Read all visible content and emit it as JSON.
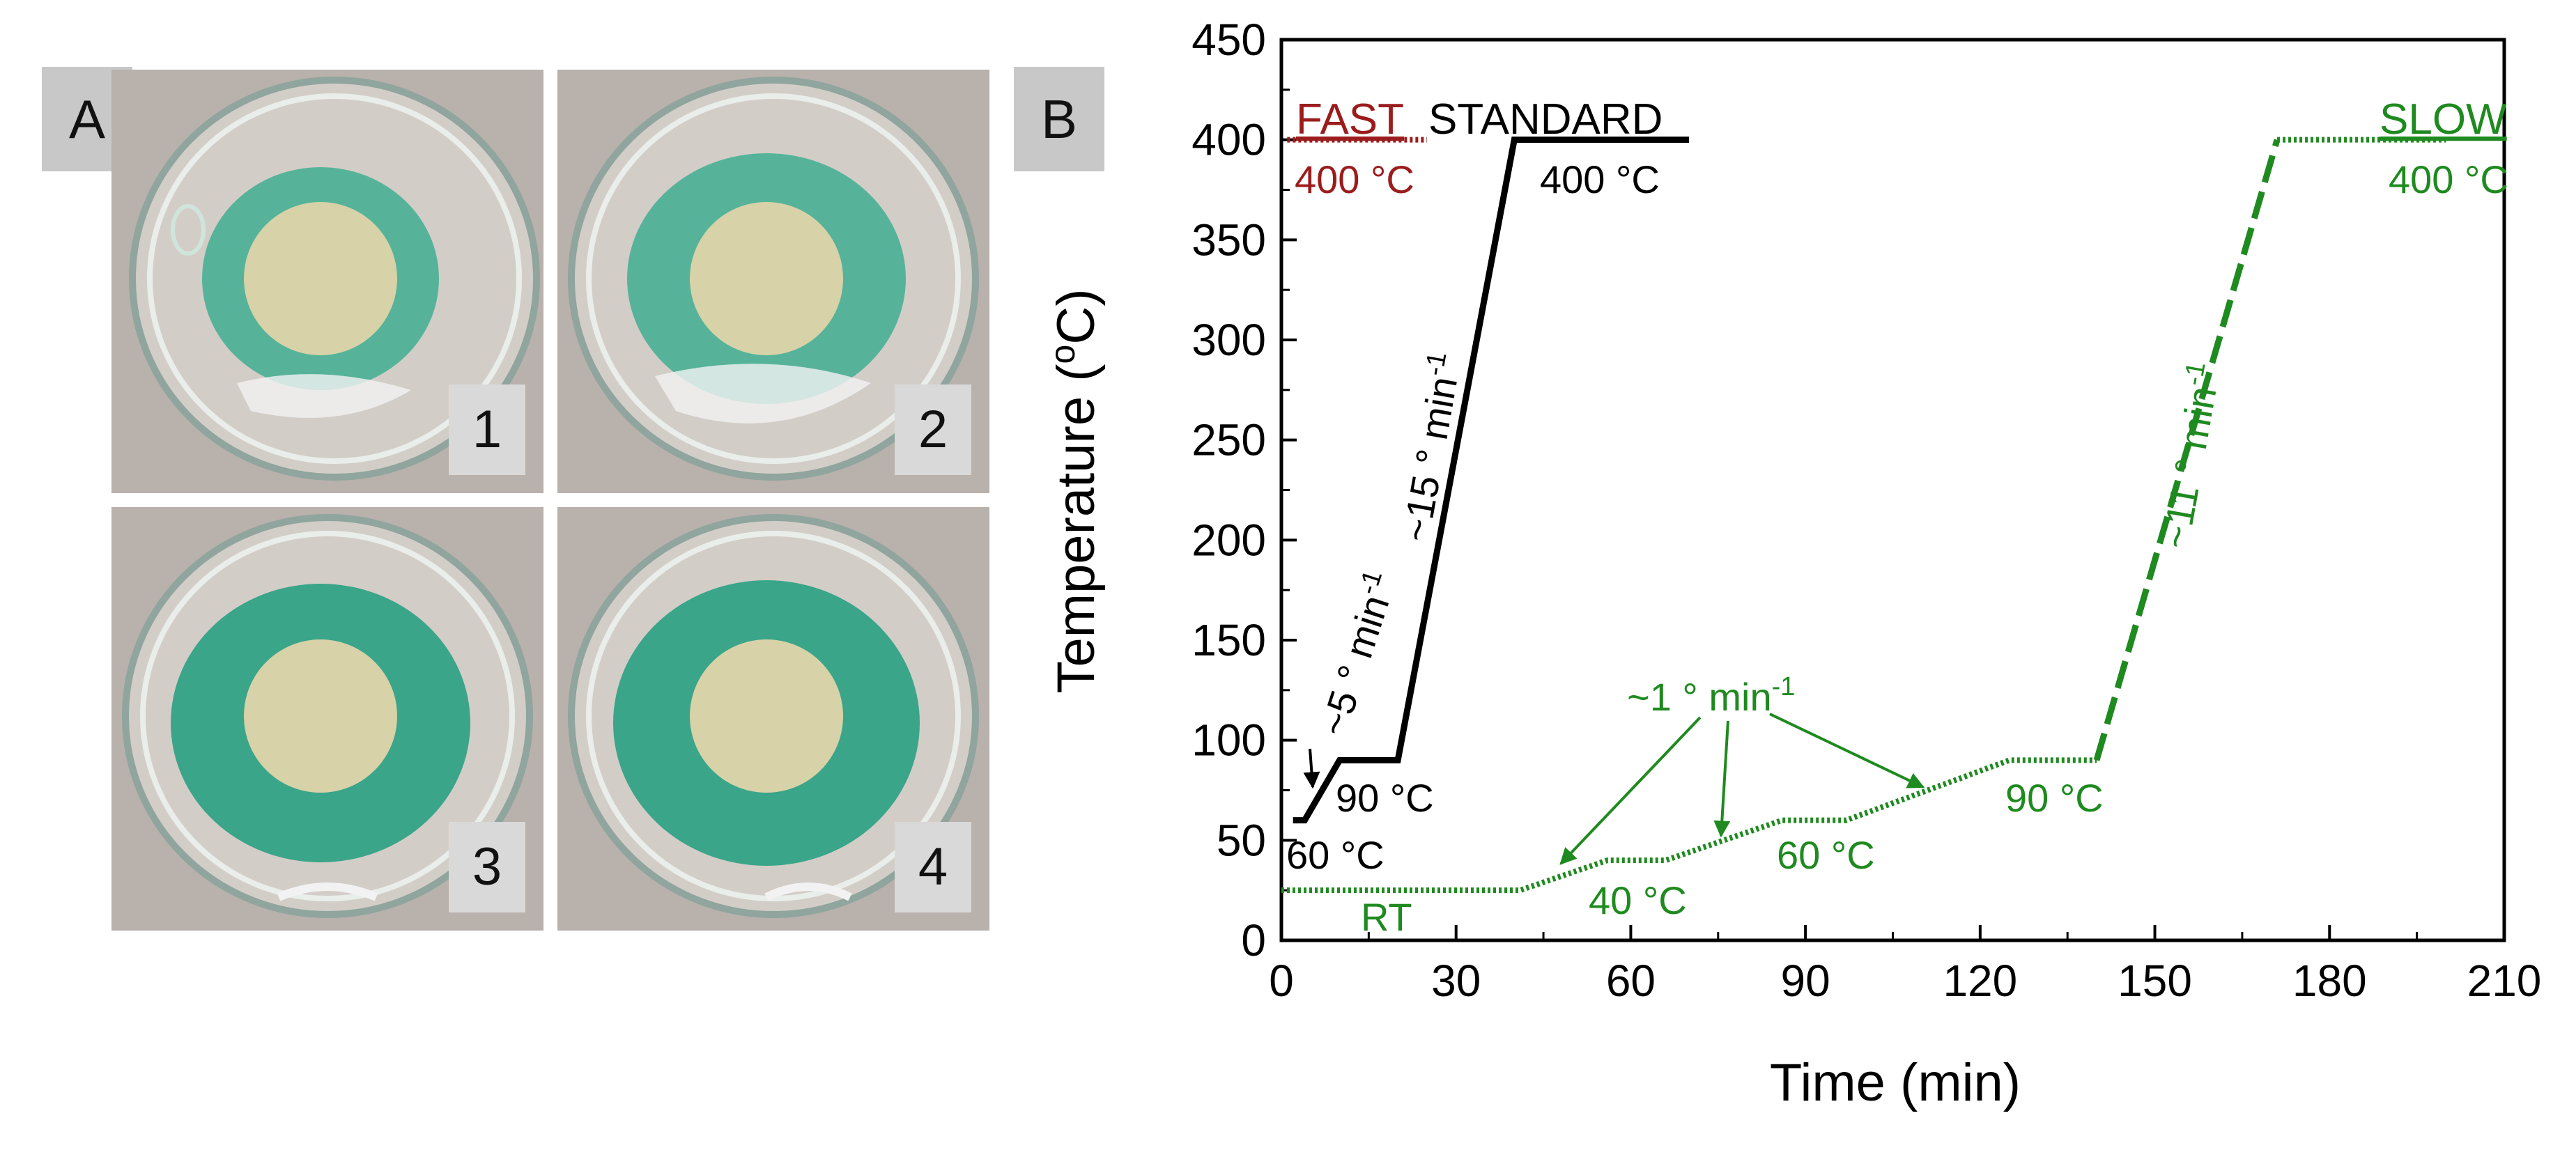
{
  "panels": {
    "a_label": "A",
    "b_label": "B",
    "dish_numbers": [
      "1",
      "2",
      "3",
      "4"
    ]
  },
  "colors": {
    "standard": "#000000",
    "fast": "#9b1c1c",
    "slow": "#1f8a1f",
    "dye": "#1aa07a"
  },
  "chart_data": {
    "type": "line",
    "xlabel": "Time (min)",
    "ylabel_main": "Temperature (",
    "ylabel_sup": "o",
    "ylabel_end": "C)",
    "xlim": [
      0,
      210
    ],
    "ylim": [
      0,
      450
    ],
    "xticks": [
      0,
      30,
      60,
      90,
      120,
      150,
      180,
      210
    ],
    "yticks": [
      0,
      50,
      100,
      150,
      200,
      250,
      300,
      350,
      400,
      450
    ],
    "series": [
      {
        "name": "STANDARD",
        "label_text": "STANDARD",
        "style": "solid",
        "x": [
          2,
          4,
          10,
          20,
          40,
          70
        ],
        "y": [
          60,
          60,
          90,
          90,
          400,
          400
        ]
      },
      {
        "name": "FAST",
        "label_text": "FAST",
        "style": "dotted",
        "x": [
          1,
          25
        ],
        "y": [
          400,
          400
        ]
      },
      {
        "name": "SLOW",
        "label_text": "SLOW",
        "style": "dotted-then-dashed",
        "x": [
          0,
          41,
          56,
          66,
          86,
          97,
          125,
          140,
          171,
          200
        ],
        "y": [
          25,
          25,
          40,
          40,
          60,
          60,
          90,
          90,
          400,
          400
        ],
        "dashed_segment_from_index": 7
      }
    ],
    "annotations": {
      "fast_400": "400 °C",
      "standard_400": "400 °C",
      "slow_400": "400 °C",
      "standard_90": "90 °C",
      "standard_60": "60 °C",
      "rate_5": "~5 ° min",
      "rate_15": "~15 ° min",
      "rate_11": "~11 ° min",
      "rate_1": "~1 ° min",
      "rate_sup": "-1",
      "rt": "RT",
      "slow_40": "40 °C",
      "slow_60": "60 °C",
      "slow_90": "90 °C"
    }
  }
}
